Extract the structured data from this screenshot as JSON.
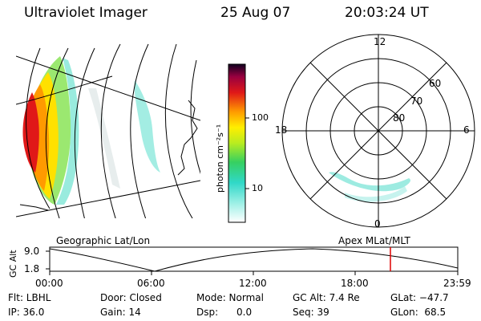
{
  "header": {
    "instrument": "Ultraviolet Imager",
    "date": "25 Aug 07",
    "time": "20:03:24 UT"
  },
  "colorbar": {
    "unit": "photon cm⁻²s⁻¹",
    "ticks": [
      "100",
      "10"
    ]
  },
  "polar": {
    "mlt_labels": [
      "12",
      "18",
      "6",
      "0"
    ],
    "lat_labels": [
      "60",
      "70",
      "80"
    ]
  },
  "orbit": {
    "left_label": "Geographic Lat/Lon",
    "right_label": "Apex MLat/MLT",
    "axis_title": "GC Alt",
    "y_ticks": [
      "9.0",
      "1.8"
    ],
    "x_ticks": [
      "00:00",
      "06:00",
      "12:00",
      "18:00",
      "23:59"
    ],
    "current_marker_fraction": 0.836
  },
  "info": {
    "row1": {
      "flt": "Flt: LBHL",
      "door": "Door: Closed",
      "mode": "Mode: Normal",
      "gcalt": "GC Alt: 7.4 Re",
      "glat": "GLat: −47.7"
    },
    "row2": {
      "ip": "IP: 36.0",
      "gain": "Gain: 14",
      "dsp": "Dsp:      0.0",
      "seq": "Seq: 39",
      "glon": "GLon:  68.5"
    }
  },
  "colors": {
    "gradient": [
      "#ffffff",
      "#40e0d0",
      "#32cd32",
      "#ffff00",
      "#ffa500",
      "#ff0000",
      "#c00000",
      "#000030"
    ],
    "marker": "#dd0000"
  }
}
